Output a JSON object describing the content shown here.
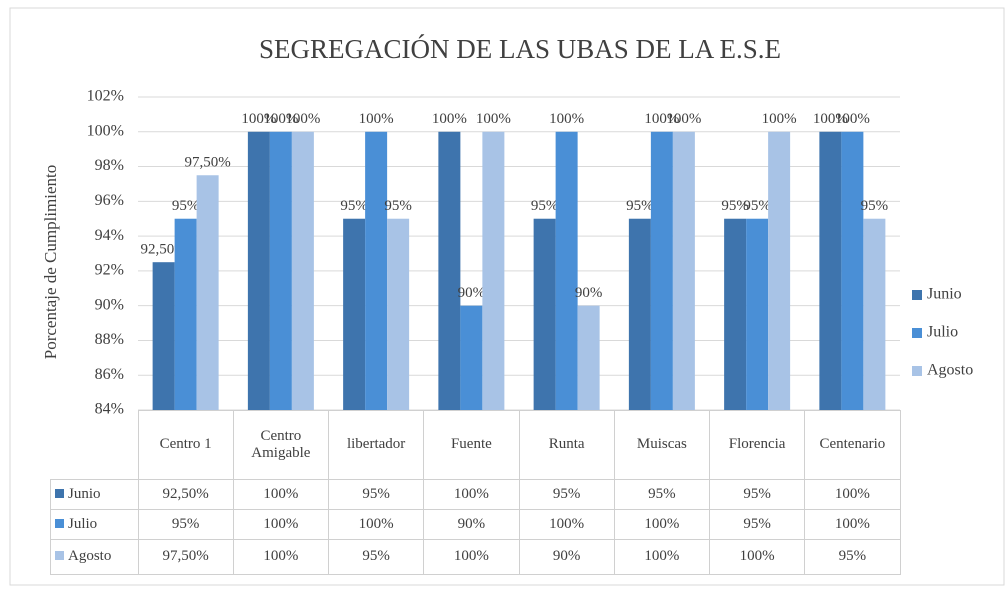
{
  "chart_data": {
    "type": "bar",
    "title": "SEGREGACIÓN  DE LAS UBAS  DE LA E.S.E",
    "y_label": "Porcentaje de Cumplimiento",
    "categories": [
      "Centro 1",
      "Centro Amigable",
      "libertador",
      "Fuente",
      "Runta",
      "Muiscas",
      "Florencia",
      "Centenario"
    ],
    "series": [
      {
        "name": "Junio",
        "color": "#3e74ad",
        "values": [
          92.5,
          100,
          95,
          100,
          95,
          95,
          95,
          100
        ],
        "value_labels": [
          "92,50%",
          "100%",
          "95%",
          "100%",
          "95%",
          "95%",
          "95%",
          "100%"
        ]
      },
      {
        "name": "Julio",
        "color": "#4a8fd6",
        "values": [
          95,
          100,
          100,
          90,
          100,
          100,
          95,
          100
        ],
        "value_labels": [
          "95%",
          "100%",
          "100%",
          "90%",
          "100%",
          "100%",
          "95%",
          "100%"
        ]
      },
      {
        "name": "Agosto",
        "color": "#a8c3e6",
        "values": [
          97.5,
          100,
          95,
          100,
          90,
          100,
          100,
          95
        ],
        "value_labels": [
          "97,50%",
          "100%",
          "95%",
          "100%",
          "90%",
          "100%",
          "100%",
          "95%"
        ]
      }
    ],
    "ylim": [
      84,
      102
    ],
    "yticks": [
      {
        "value": 84,
        "label": "84%"
      },
      {
        "value": 86,
        "label": "86%"
      },
      {
        "value": 88,
        "label": "88%"
      },
      {
        "value": 90,
        "label": "90%"
      },
      {
        "value": 92,
        "label": "92%"
      },
      {
        "value": 94,
        "label": "94%"
      },
      {
        "value": 96,
        "label": "96%"
      },
      {
        "value": 98,
        "label": "98%"
      },
      {
        "value": 100,
        "label": "100%"
      },
      {
        "value": 102,
        "label": "102%"
      }
    ],
    "grid": true,
    "legend": "right"
  }
}
